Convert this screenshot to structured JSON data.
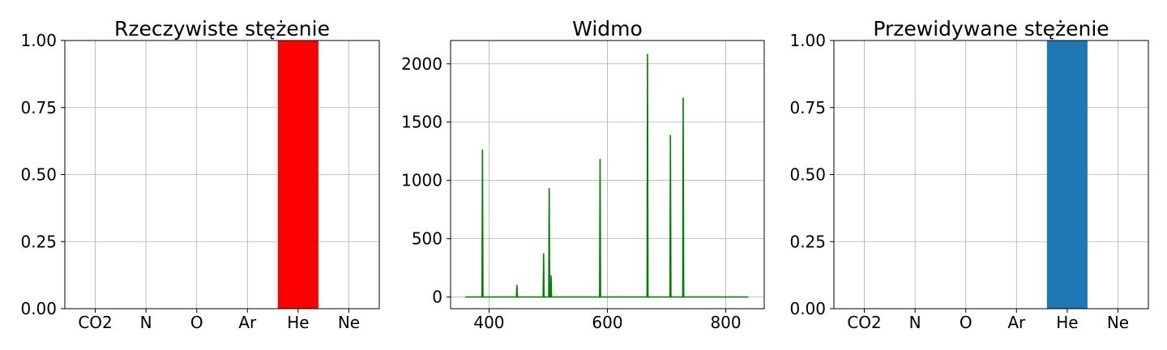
{
  "chart_data": [
    {
      "type": "bar",
      "title": "Rzeczywiste stężenie",
      "categories": [
        "CO2",
        "N",
        "O",
        "Ar",
        "He",
        "Ne"
      ],
      "values": [
        0,
        0,
        0,
        0,
        1.0,
        0
      ],
      "ylim": [
        0,
        1.0
      ],
      "yticks": [
        "0.00",
        "0.25",
        "0.50",
        "0.75",
        "1.00"
      ],
      "bar_color": "#ff0000",
      "grid": true
    },
    {
      "type": "line",
      "title": "Widmo",
      "xlim": [
        335,
        865
      ],
      "ylim": [
        -100,
        2200
      ],
      "xticks": [
        "400",
        "600",
        "800"
      ],
      "yticks": [
        "0",
        "500",
        "1000",
        "1500",
        "2000"
      ],
      "line_color": "#008000",
      "grid": true,
      "range": [
        360,
        838
      ],
      "peaks": [
        {
          "x": 388.9,
          "y": 1260
        },
        {
          "x": 447.1,
          "y": 100
        },
        {
          "x": 492.2,
          "y": 370
        },
        {
          "x": 501.6,
          "y": 930
        },
        {
          "x": 504.8,
          "y": 180
        },
        {
          "x": 587.6,
          "y": 1180
        },
        {
          "x": 667.8,
          "y": 2080
        },
        {
          "x": 706.5,
          "y": 1385
        },
        {
          "x": 728.1,
          "y": 1705
        }
      ]
    },
    {
      "type": "bar",
      "title": "Przewidywane stężenie",
      "categories": [
        "CO2",
        "N",
        "O",
        "Ar",
        "He",
        "Ne"
      ],
      "values": [
        0,
        0,
        0,
        0,
        1.0,
        0
      ],
      "ylim": [
        0,
        1.0
      ],
      "yticks": [
        "0.00",
        "0.25",
        "0.50",
        "0.75",
        "1.00"
      ],
      "bar_color": "#1f77b4",
      "grid": true
    }
  ]
}
